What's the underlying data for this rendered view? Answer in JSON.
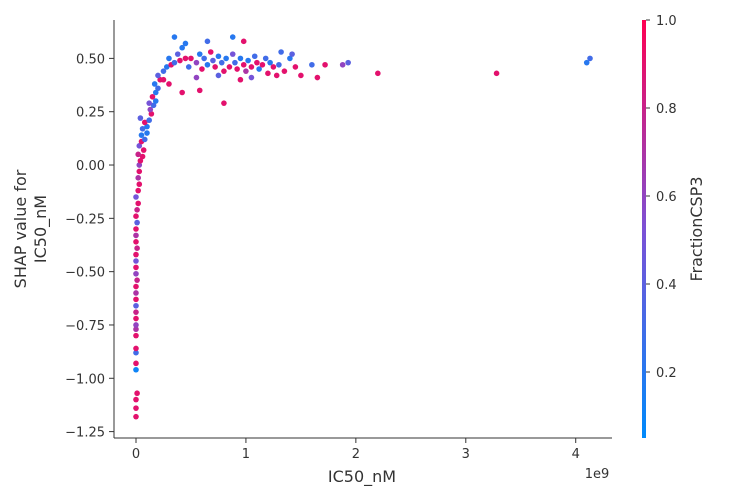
{
  "chart_data": {
    "type": "scatter",
    "xlabel": "IC50_nM",
    "ylabel_lines": [
      "SHAP value for",
      "IC50_nM"
    ],
    "x_offset_label": "1e9",
    "colorbar_label": "FractionCSP3",
    "x_unit_multiplier": 1000000000,
    "xlim": [
      -0.2,
      4.33
    ],
    "ylim": [
      -1.28,
      0.68
    ],
    "x_ticks": [
      0,
      1,
      2,
      3,
      4
    ],
    "x_tick_labels": [
      "0",
      "1",
      "2",
      "3",
      "4"
    ],
    "y_ticks": [
      0.5,
      0.25,
      0.0,
      -0.25,
      -0.5,
      -0.75,
      -1.0,
      -1.25
    ],
    "y_tick_labels": [
      "0.50",
      "0.25",
      "0.00",
      "−0.25",
      "−0.50",
      "−0.75",
      "−1.00",
      "−1.25"
    ],
    "colorbar_range": [
      0.05,
      1.0
    ],
    "colorbar_ticks": [
      1.0,
      0.8,
      0.6,
      0.4,
      0.2
    ],
    "colorbar_tick_labels": [
      "1.0",
      "0.8",
      "0.6",
      "0.4",
      "0.2"
    ],
    "colormap": [
      "#008afb",
      "#7c51d6",
      "#ff0051"
    ],
    "grid": false,
    "points": [
      [
        0.0,
        -1.18,
        0.9
      ],
      [
        0.0,
        -1.14,
        0.9
      ],
      [
        0.0,
        -1.1,
        0.9
      ],
      [
        0.01,
        -1.07,
        0.9
      ],
      [
        0.0,
        -0.96,
        0.1
      ],
      [
        0.0,
        -0.93,
        0.9
      ],
      [
        0.0,
        -0.88,
        0.3
      ],
      [
        0.0,
        -0.86,
        0.9
      ],
      [
        0.0,
        -0.8,
        0.9
      ],
      [
        0.0,
        -0.77,
        0.7
      ],
      [
        0.0,
        -0.75,
        0.6
      ],
      [
        0.0,
        -0.72,
        0.9
      ],
      [
        0.0,
        -0.69,
        0.8
      ],
      [
        0.0,
        -0.66,
        0.4
      ],
      [
        0.0,
        -0.63,
        0.9
      ],
      [
        0.0,
        -0.6,
        0.7
      ],
      [
        0.0,
        -0.57,
        0.9
      ],
      [
        0.01,
        -0.54,
        0.8
      ],
      [
        0.0,
        -0.51,
        0.6
      ],
      [
        0.0,
        -0.48,
        0.9
      ],
      [
        0.0,
        -0.45,
        0.5
      ],
      [
        0.0,
        -0.42,
        0.9
      ],
      [
        0.01,
        -0.39,
        0.8
      ],
      [
        0.0,
        -0.36,
        0.9
      ],
      [
        0.0,
        -0.33,
        0.7
      ],
      [
        0.0,
        -0.3,
        0.9
      ],
      [
        0.01,
        -0.27,
        0.4
      ],
      [
        0.0,
        -0.24,
        0.9
      ],
      [
        0.01,
        -0.21,
        0.8
      ],
      [
        0.02,
        -0.18,
        0.9
      ],
      [
        0.0,
        -0.15,
        0.5
      ],
      [
        0.02,
        -0.12,
        0.9
      ],
      [
        0.03,
        -0.09,
        0.9
      ],
      [
        0.02,
        -0.06,
        0.7
      ],
      [
        0.03,
        -0.03,
        0.9
      ],
      [
        0.03,
        0.0,
        0.6
      ],
      [
        0.04,
        0.02,
        0.9
      ],
      [
        0.06,
        0.04,
        0.9
      ],
      [
        0.02,
        0.05,
        0.8
      ],
      [
        0.07,
        0.07,
        0.9
      ],
      [
        0.03,
        0.09,
        0.5
      ],
      [
        0.05,
        0.11,
        0.9
      ],
      [
        0.08,
        0.12,
        0.3
      ],
      [
        0.05,
        0.14,
        0.2
      ],
      [
        0.1,
        0.15,
        0.2
      ],
      [
        0.06,
        0.17,
        0.3
      ],
      [
        0.1,
        0.18,
        0.2
      ],
      [
        0.08,
        0.2,
        0.9
      ],
      [
        0.12,
        0.21,
        0.3
      ],
      [
        0.04,
        0.22,
        0.4
      ],
      [
        0.14,
        0.24,
        0.9
      ],
      [
        0.13,
        0.26,
        0.6
      ],
      [
        0.16,
        0.28,
        0.3
      ],
      [
        0.12,
        0.29,
        0.5
      ],
      [
        0.18,
        0.3,
        0.2
      ],
      [
        0.15,
        0.32,
        0.9
      ],
      [
        0.18,
        0.34,
        0.2
      ],
      [
        0.2,
        0.36,
        0.3
      ],
      [
        0.17,
        0.38,
        0.2
      ],
      [
        0.22,
        0.4,
        0.9
      ],
      [
        0.2,
        0.42,
        0.4
      ],
      [
        0.25,
        0.44,
        0.3
      ],
      [
        0.28,
        0.46,
        0.2
      ],
      [
        0.32,
        0.47,
        0.9
      ],
      [
        0.35,
        0.48,
        0.3
      ],
      [
        0.3,
        0.5,
        0.2
      ],
      [
        0.4,
        0.49,
        0.9
      ],
      [
        0.38,
        0.52,
        0.4
      ],
      [
        0.45,
        0.5,
        0.9
      ],
      [
        0.42,
        0.55,
        0.2
      ],
      [
        0.48,
        0.46,
        0.3
      ],
      [
        0.5,
        0.5,
        0.9
      ],
      [
        0.55,
        0.48,
        0.6
      ],
      [
        0.58,
        0.52,
        0.2
      ],
      [
        0.6,
        0.45,
        0.9
      ],
      [
        0.62,
        0.5,
        0.3
      ],
      [
        0.65,
        0.47,
        0.2
      ],
      [
        0.68,
        0.53,
        0.9
      ],
      [
        0.7,
        0.49,
        0.4
      ],
      [
        0.72,
        0.46,
        0.9
      ],
      [
        0.75,
        0.51,
        0.2
      ],
      [
        0.78,
        0.48,
        0.3
      ],
      [
        0.8,
        0.44,
        0.9
      ],
      [
        0.82,
        0.5,
        0.2
      ],
      [
        0.85,
        0.46,
        0.9
      ],
      [
        0.88,
        0.52,
        0.5
      ],
      [
        0.9,
        0.48,
        0.3
      ],
      [
        0.92,
        0.45,
        0.9
      ],
      [
        0.95,
        0.5,
        0.2
      ],
      [
        0.98,
        0.47,
        0.9
      ],
      [
        1.0,
        0.44,
        0.7
      ],
      [
        1.02,
        0.49,
        0.2
      ],
      [
        1.05,
        0.46,
        0.9
      ],
      [
        1.08,
        0.51,
        0.3
      ],
      [
        1.1,
        0.48,
        0.9
      ],
      [
        1.12,
        0.45,
        0.2
      ],
      [
        1.15,
        0.47,
        0.9
      ],
      [
        1.18,
        0.5,
        0.3
      ],
      [
        1.2,
        0.43,
        0.9
      ],
      [
        1.22,
        0.48,
        0.2
      ],
      [
        1.25,
        0.46,
        0.9
      ],
      [
        1.28,
        0.42,
        0.9
      ],
      [
        1.3,
        0.47,
        0.3
      ],
      [
        1.35,
        0.44,
        0.9
      ],
      [
        1.4,
        0.5,
        0.2
      ],
      [
        1.45,
        0.46,
        0.9
      ],
      [
        1.5,
        0.42,
        0.9
      ],
      [
        1.6,
        0.47,
        0.3
      ],
      [
        1.65,
        0.41,
        0.9
      ],
      [
        1.72,
        0.47,
        0.9
      ],
      [
        1.88,
        0.47,
        0.6
      ],
      [
        1.93,
        0.48,
        0.4
      ],
      [
        2.2,
        0.43,
        0.9
      ],
      [
        3.28,
        0.43,
        0.9
      ],
      [
        4.1,
        0.48,
        0.2
      ],
      [
        4.13,
        0.5,
        0.3
      ],
      [
        0.35,
        0.6,
        0.2
      ],
      [
        0.45,
        0.57,
        0.2
      ],
      [
        0.65,
        0.58,
        0.3
      ],
      [
        0.88,
        0.6,
        0.2
      ],
      [
        0.98,
        0.58,
        0.9
      ],
      [
        0.3,
        0.38,
        0.9
      ],
      [
        0.42,
        0.34,
        0.9
      ],
      [
        0.58,
        0.35,
        0.9
      ],
      [
        0.8,
        0.29,
        0.9
      ],
      [
        0.25,
        0.4,
        0.9
      ],
      [
        0.55,
        0.41,
        0.6
      ],
      [
        0.75,
        0.42,
        0.4
      ],
      [
        0.95,
        0.4,
        0.9
      ],
      [
        1.05,
        0.41,
        0.5
      ],
      [
        1.32,
        0.53,
        0.3
      ],
      [
        1.42,
        0.52,
        0.4
      ]
    ]
  }
}
